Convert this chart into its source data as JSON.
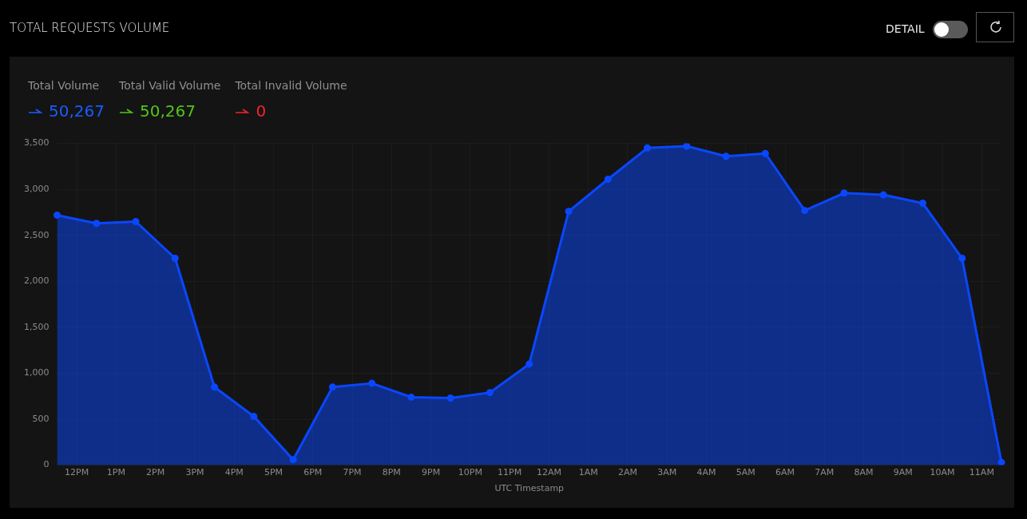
{
  "chart_data": {
    "type": "area",
    "title": "TOTAL REQUESTS VOLUME",
    "xlabel": "UTC Timestamp",
    "annotations": [
      "Total Volume",
      "50,267",
      "Total Valid Volume",
      "50,267",
      "Total Invalid Volume",
      "0",
      "DETAIL"
    ],
    "categories": [
      null,
      "12PM",
      null,
      "1PM",
      null,
      "2PM",
      null,
      "3PM",
      null,
      "4PM",
      null,
      "5PM",
      null,
      "6PM",
      null,
      "7PM",
      null,
      "8PM",
      null,
      "9PM",
      null,
      "10PM",
      null,
      "11PM",
      null,
      "12AM",
      null,
      "1AM",
      null,
      "2AM",
      null,
      "3AM",
      null,
      "4AM",
      null,
      "5AM",
      null,
      "6AM",
      null,
      "7AM",
      null,
      "8AM",
      null,
      "9AM",
      null,
      "10AM",
      null,
      "11AM",
      null
    ],
    "series": [
      {
        "color": "#0a47ff",
        "values": [
          2720,
          null,
          2630,
          null,
          2650,
          null,
          2250,
          null,
          850,
          null,
          530,
          null,
          60,
          null,
          850,
          null,
          890,
          null,
          740,
          null,
          730,
          null,
          790,
          null,
          1100,
          null,
          2760,
          null,
          3110,
          null,
          3450,
          null,
          3470,
          null,
          3360,
          null,
          3390,
          null,
          2770,
          null,
          2960,
          null,
          2940,
          null,
          2850,
          null,
          2250,
          null,
          30
        ]
      }
    ],
    "ylim": [
      0,
      3500
    ],
    "yticks": [
      {
        "value": 0,
        "label": "0"
      },
      {
        "value": 500,
        "label": "500"
      },
      {
        "value": 1000,
        "label": "1,000"
      },
      {
        "value": 1500,
        "label": "1,500"
      },
      {
        "value": 2000,
        "label": "2,000"
      },
      {
        "value": 2500,
        "label": "2,500"
      },
      {
        "value": 3000,
        "label": "3,000"
      },
      {
        "value": 3500,
        "label": "3,500"
      }
    ],
    "grid": true,
    "marker": "circle",
    "line_style": "solid",
    "legend": false
  }
}
